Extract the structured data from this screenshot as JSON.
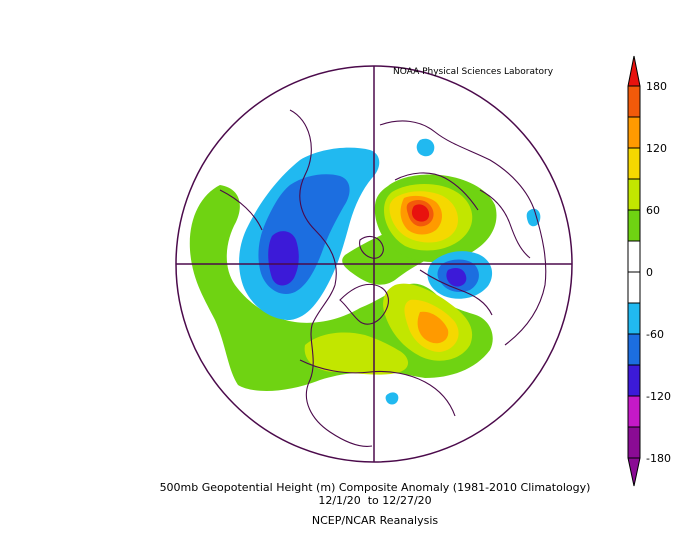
{
  "credit": "NOAA Physical Sciences Laboratory",
  "caption": {
    "line1": "500mb Geopotential Height (m) Composite Anomaly (1981-2010 Climatology)",
    "line2": "12/1/20  to 12/27/20",
    "line3": "NCEP/NCAR Reanalysis"
  },
  "colorbar": {
    "tick_labels": [
      "180",
      "120",
      "60",
      "0",
      "-60",
      "-120",
      "-180"
    ],
    "colors": {
      "above_180": "#e8120e",
      "150_180": "#f25a0a",
      "120_150": "#ff9a00",
      "90_120": "#f5d800",
      "60_90": "#c2e600",
      "30_60": "#6fd312",
      "-30_30": "#ffffff",
      "-60_-30": "#21b9f0",
      "-90_-60": "#1c6ee0",
      "-120_-90": "#3c1ad8",
      "-150_-120": "#c519c7",
      "below_-150": "#8a0b94"
    }
  },
  "map": {
    "projection": "north polar stereographic",
    "outline_color": "#4b0a4b"
  }
}
